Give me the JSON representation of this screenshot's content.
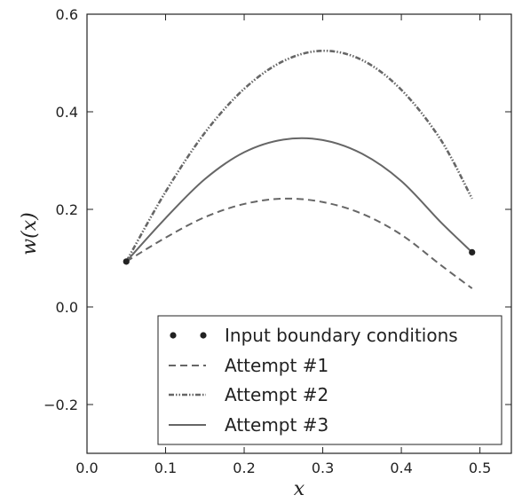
{
  "chart_data": {
    "type": "line",
    "xlabel": "x",
    "ylabel": "w(x)",
    "xlim": [
      0.0,
      0.54
    ],
    "ylim": [
      -0.3,
      0.6
    ],
    "xticks": [
      0.0,
      0.1,
      0.2,
      0.3,
      0.4,
      0.5
    ],
    "xtick_labels": [
      "0.0",
      "0.1",
      "0.2",
      "0.3",
      "0.4",
      "0.5"
    ],
    "yticks": [
      -0.2,
      0.0,
      0.2,
      0.4,
      0.6
    ],
    "ytick_labels": [
      "−0.2",
      "0.0",
      "0.2",
      "0.4",
      "0.6"
    ],
    "grid": false,
    "legend_position": "lower-right",
    "boundary_points": {
      "name": "Input boundary conditions",
      "x": [
        0.05,
        0.49
      ],
      "y": [
        0.093,
        0.112
      ]
    },
    "series": [
      {
        "name": "Attempt #1",
        "style": "dashed",
        "x": [
          0.05,
          0.1,
          0.15,
          0.2,
          0.25,
          0.3,
          0.35,
          0.4,
          0.45,
          0.49
        ],
        "y": [
          0.093,
          0.142,
          0.184,
          0.211,
          0.222,
          0.215,
          0.191,
          0.148,
          0.086,
          0.038
        ]
      },
      {
        "name": "Attempt #2",
        "style": "dash-dot-dot",
        "x": [
          0.05,
          0.1,
          0.15,
          0.2,
          0.25,
          0.3,
          0.35,
          0.4,
          0.45,
          0.49
        ],
        "y": [
          0.093,
          0.236,
          0.357,
          0.447,
          0.504,
          0.525,
          0.506,
          0.445,
          0.343,
          0.222
        ]
      },
      {
        "name": "Attempt #3",
        "style": "solid",
        "x": [
          0.05,
          0.1,
          0.15,
          0.2,
          0.25,
          0.3,
          0.35,
          0.4,
          0.45,
          0.49
        ],
        "y": [
          0.093,
          0.182,
          0.262,
          0.317,
          0.343,
          0.342,
          0.314,
          0.258,
          0.174,
          0.112
        ]
      }
    ],
    "colors": {
      "line": "#666666",
      "marker": "#222222",
      "axis": "#222222"
    }
  }
}
